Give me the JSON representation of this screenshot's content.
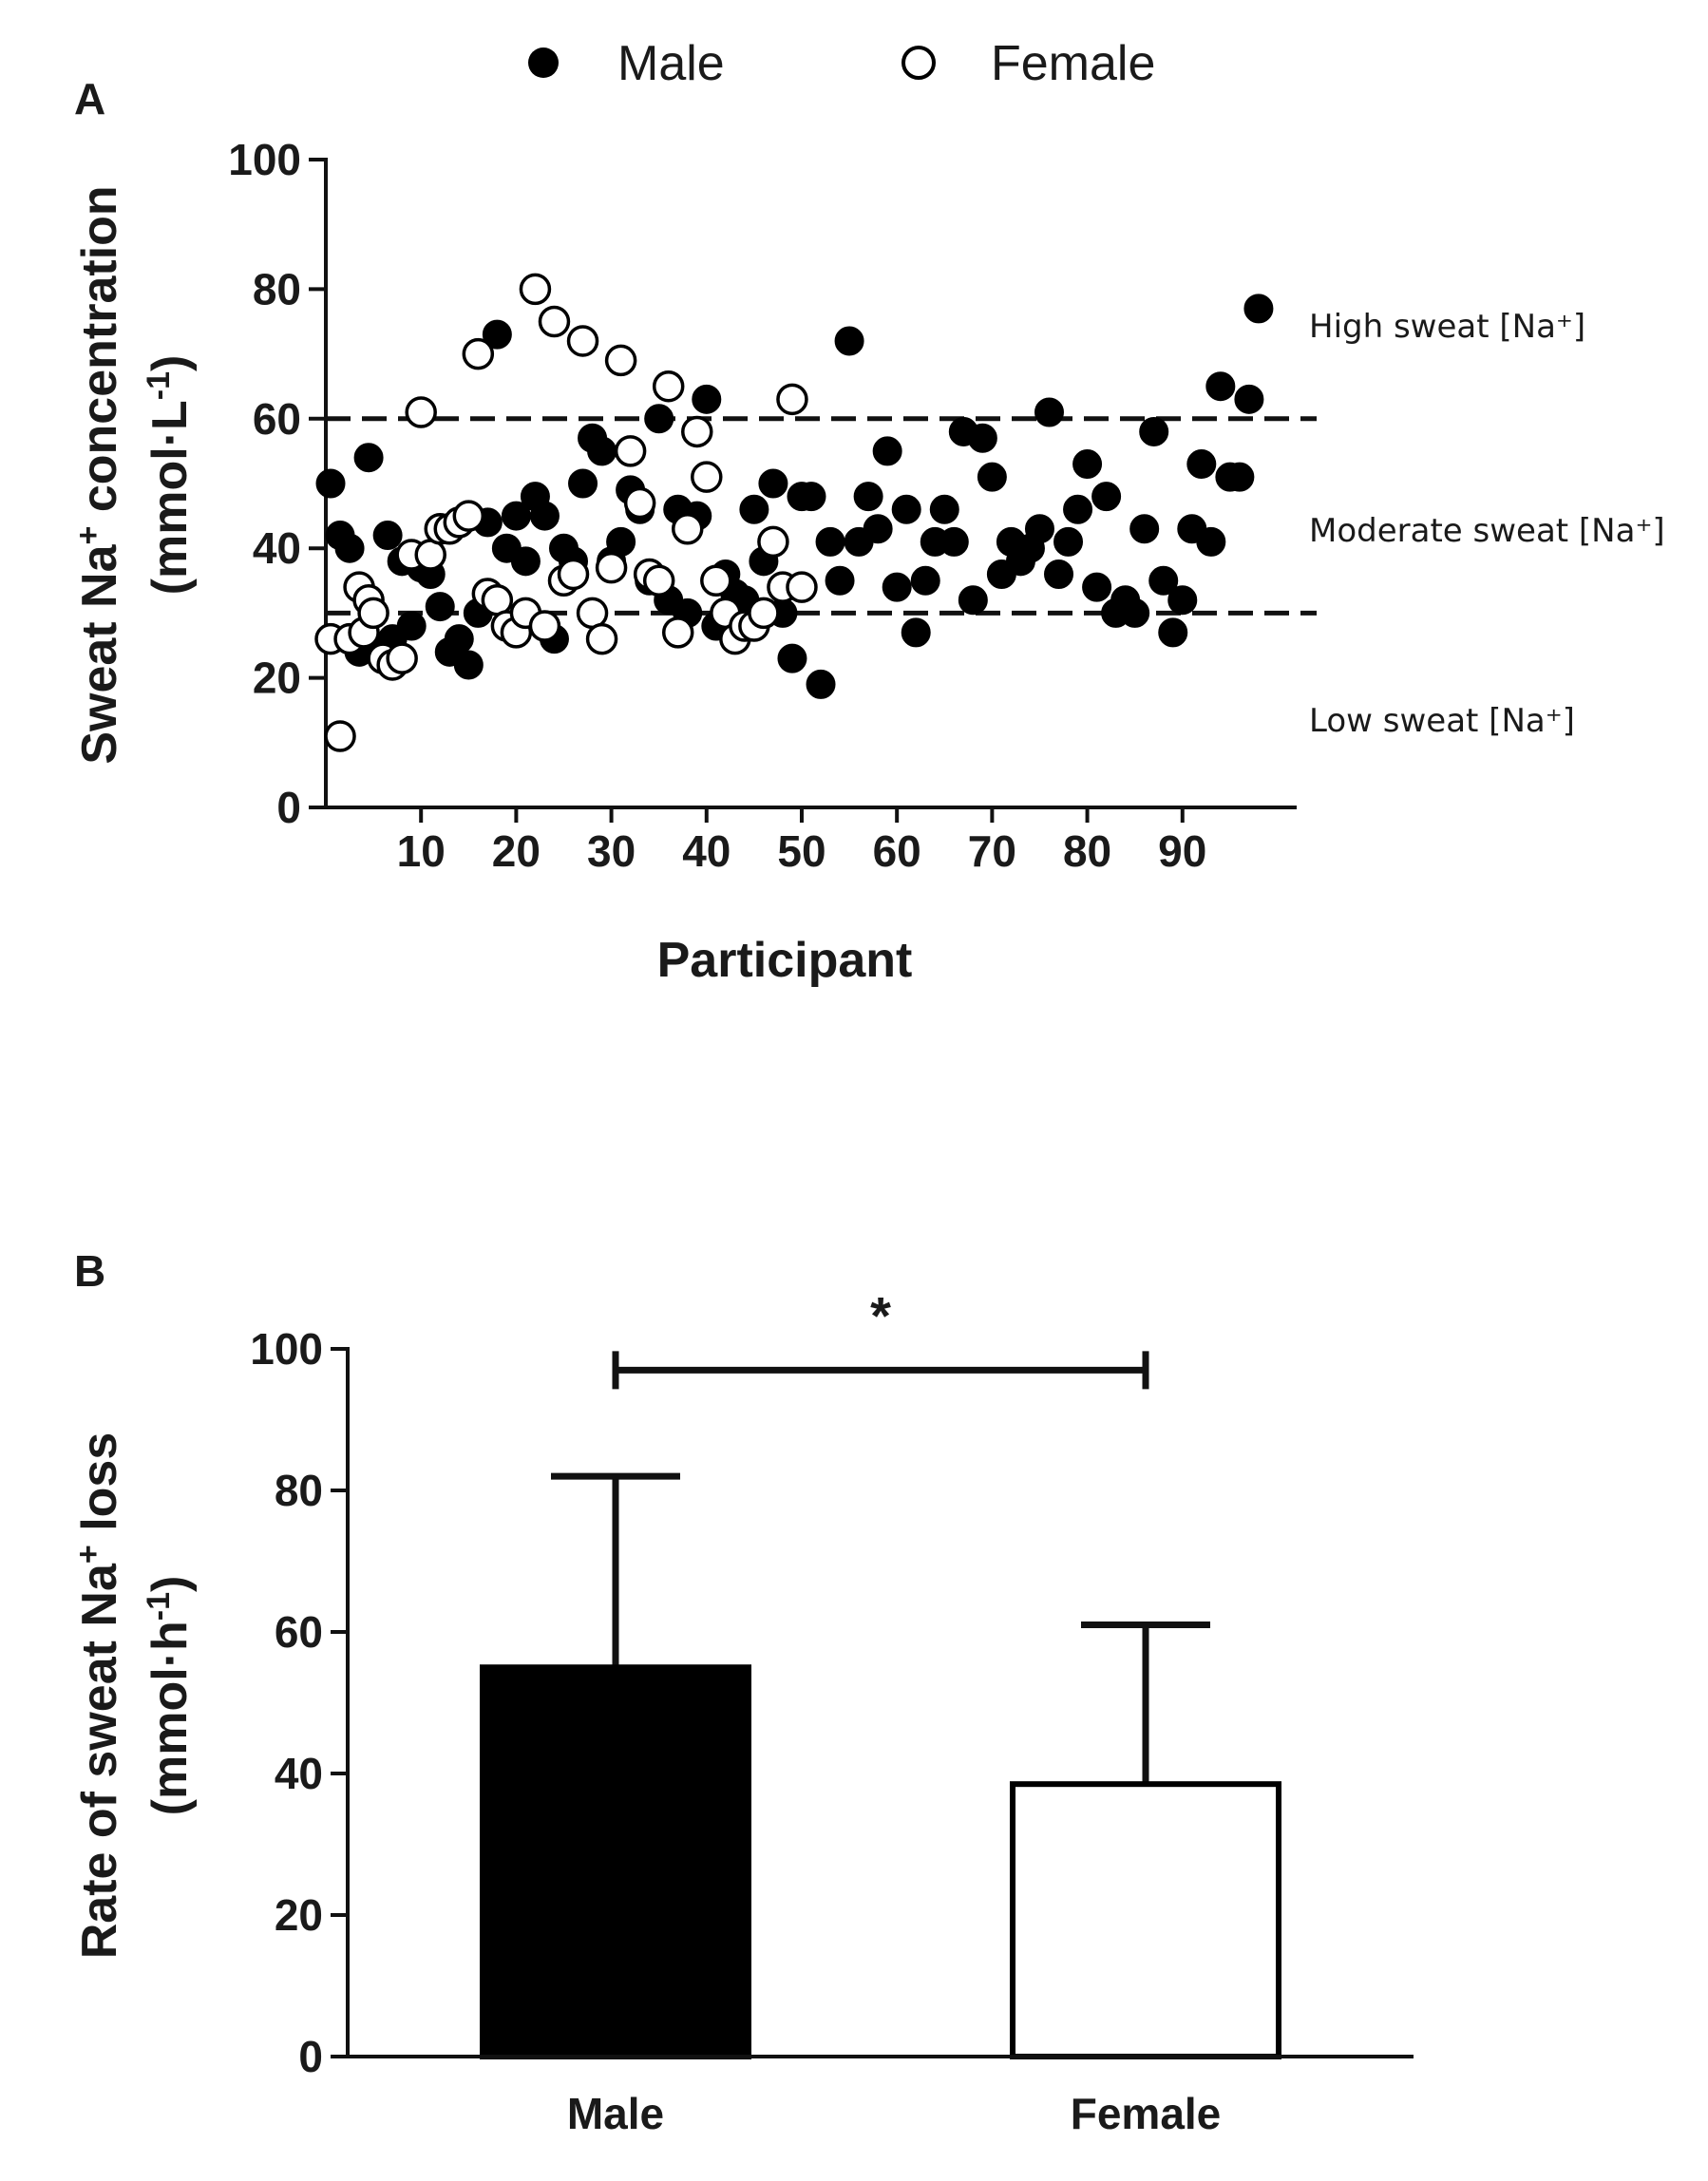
{
  "chart_data": [
    {
      "panel": "A",
      "type": "scatter",
      "xlabel": "Participant",
      "ylabel_main": "Sweat Na",
      "ylabel_sup": "+",
      "ylabel_rest": " concentration",
      "yunit_pre": "(mmol·L",
      "yunit_sup": "-1",
      "yunit_post": ")",
      "xlim": [
        0,
        102
      ],
      "ylim": [
        0,
        100
      ],
      "xticks": [
        10,
        20,
        30,
        40,
        50,
        60,
        70,
        80,
        90
      ],
      "yticks": [
        0,
        20,
        40,
        60,
        80,
        100
      ],
      "thresholds": [
        60,
        30
      ],
      "zones": [
        {
          "text": "High sweat  [Na⁺]",
          "level": "high"
        },
        {
          "text": "Moderate sweat  [Na⁺]",
          "level": "moderate"
        },
        {
          "text": "Low sweat  [Na⁺]",
          "level": "low"
        }
      ],
      "legend": [
        {
          "name": "Male",
          "marker": "filled"
        },
        {
          "name": "Female",
          "marker": "open"
        }
      ],
      "series": [
        {
          "name": "Male",
          "marker": "filled",
          "points": [
            [
              0.5,
              50
            ],
            [
              1.5,
              42
            ],
            [
              2.5,
              40
            ],
            [
              3.5,
              24
            ],
            [
              4.5,
              54
            ],
            [
              5,
              25
            ],
            [
              6.5,
              42
            ],
            [
              7,
              26
            ],
            [
              8,
              38
            ],
            [
              9,
              28
            ],
            [
              10,
              37
            ],
            [
              11,
              36
            ],
            [
              12,
              31
            ],
            [
              13,
              24
            ],
            [
              14,
              26
            ],
            [
              15,
              22
            ],
            [
              16,
              30
            ],
            [
              17,
              44
            ],
            [
              18,
              73
            ],
            [
              19,
              40
            ],
            [
              20,
              45
            ],
            [
              21,
              38
            ],
            [
              22,
              48
            ],
            [
              23,
              45
            ],
            [
              24,
              26
            ],
            [
              25,
              40
            ],
            [
              26,
              38
            ],
            [
              27,
              50
            ],
            [
              28,
              57
            ],
            [
              29,
              55
            ],
            [
              30,
              38
            ],
            [
              31,
              41
            ],
            [
              32,
              49
            ],
            [
              33,
              46
            ],
            [
              34,
              35
            ],
            [
              35,
              60
            ],
            [
              36,
              32
            ],
            [
              37,
              46
            ],
            [
              38,
              30
            ],
            [
              39,
              45
            ],
            [
              40,
              63
            ],
            [
              41,
              28
            ],
            [
              42,
              36
            ],
            [
              43,
              33
            ],
            [
              44,
              32
            ],
            [
              45,
              46
            ],
            [
              46,
              38
            ],
            [
              47,
              50
            ],
            [
              48,
              30
            ],
            [
              49,
              23
            ],
            [
              50,
              48
            ],
            [
              51,
              48
            ],
            [
              52,
              19
            ],
            [
              53,
              41
            ],
            [
              54,
              35
            ],
            [
              55,
              72
            ],
            [
              56,
              41
            ],
            [
              57,
              48
            ],
            [
              58,
              43
            ],
            [
              59,
              55
            ],
            [
              60,
              34
            ],
            [
              61,
              46
            ],
            [
              62,
              27
            ],
            [
              63,
              35
            ],
            [
              64,
              41
            ],
            [
              65,
              46
            ],
            [
              66,
              41
            ],
            [
              67,
              58
            ],
            [
              68,
              32
            ],
            [
              69,
              57
            ],
            [
              70,
              51
            ],
            [
              71,
              36
            ],
            [
              72,
              41
            ],
            [
              73,
              38
            ],
            [
              74,
              40
            ],
            [
              75,
              43
            ],
            [
              76,
              61
            ],
            [
              77,
              36
            ],
            [
              78,
              41
            ],
            [
              79,
              46
            ],
            [
              80,
              53
            ],
            [
              81,
              34
            ],
            [
              82,
              48
            ],
            [
              83,
              30
            ],
            [
              84,
              32
            ],
            [
              85,
              30
            ],
            [
              86,
              43
            ],
            [
              87,
              58
            ],
            [
              88,
              35
            ],
            [
              89,
              27
            ],
            [
              90,
              32
            ],
            [
              91,
              43
            ],
            [
              92,
              53
            ],
            [
              93,
              41
            ],
            [
              94,
              65
            ],
            [
              95,
              51
            ],
            [
              96,
              51
            ],
            [
              97,
              63
            ],
            [
              98,
              77
            ]
          ]
        },
        {
          "name": "Female",
          "marker": "open",
          "points": [
            [
              0.5,
              26
            ],
            [
              1.5,
              11
            ],
            [
              2.5,
              26
            ],
            [
              3.5,
              34
            ],
            [
              4,
              27
            ],
            [
              4.5,
              32
            ],
            [
              5,
              30
            ],
            [
              6,
              23
            ],
            [
              7,
              22
            ],
            [
              8,
              23
            ],
            [
              9,
              39
            ],
            [
              10,
              61
            ],
            [
              11,
              39
            ],
            [
              12,
              43
            ],
            [
              13,
              43
            ],
            [
              14,
              44
            ],
            [
              15,
              45
            ],
            [
              16,
              70
            ],
            [
              17,
              33
            ],
            [
              18,
              32
            ],
            [
              19,
              28
            ],
            [
              20,
              27
            ],
            [
              21,
              30
            ],
            [
              22,
              80
            ],
            [
              23,
              28
            ],
            [
              24,
              75
            ],
            [
              25,
              35
            ],
            [
              26,
              36
            ],
            [
              27,
              72
            ],
            [
              28,
              30
            ],
            [
              29,
              26
            ],
            [
              30,
              37
            ],
            [
              31,
              69
            ],
            [
              32,
              55
            ],
            [
              33,
              47
            ],
            [
              34,
              36
            ],
            [
              35,
              35
            ],
            [
              36,
              65
            ],
            [
              37,
              27
            ],
            [
              38,
              43
            ],
            [
              39,
              58
            ],
            [
              40,
              51
            ],
            [
              41,
              35
            ],
            [
              42,
              30
            ],
            [
              43,
              26
            ],
            [
              44,
              28
            ],
            [
              45,
              28
            ],
            [
              46,
              30
            ],
            [
              47,
              41
            ],
            [
              48,
              34
            ],
            [
              49,
              63
            ],
            [
              50,
              34
            ]
          ]
        }
      ]
    },
    {
      "panel": "B",
      "type": "bar",
      "categories": [
        "Male",
        "Female"
      ],
      "values": [
        55,
        38.5
      ],
      "error_upper": [
        82,
        61
      ],
      "bar_fills": [
        "#000000",
        "#ffffff"
      ],
      "ylabel_main": "Rate of sweat Na",
      "ylabel_sup": "+",
      "ylabel_rest": " loss",
      "yunit_pre": "(mmol·h",
      "yunit_sup": "-1",
      "yunit_post": ")",
      "ylim": [
        0,
        100
      ],
      "yticks": [
        0,
        20,
        40,
        60,
        80,
        100
      ],
      "significance": {
        "label": "*",
        "between": [
          "Male",
          "Female"
        ],
        "y": 97
      }
    }
  ]
}
